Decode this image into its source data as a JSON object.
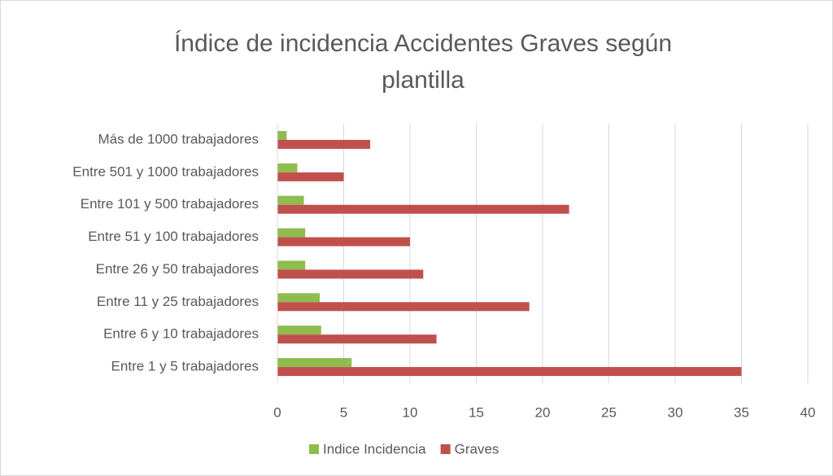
{
  "chart_data": {
    "type": "hbar",
    "title_lines": [
      "Índice de incidencia Accidentes Graves según",
      "plantilla"
    ],
    "categories": [
      "Entre 1 y 5 trabajadores",
      "Entre 6 y 10 trabajadores",
      "Entre 11 y 25 trabajadores",
      "Entre 26 y 50 trabajadores",
      "Entre 51 y 100 trabajadores",
      "Entre 101 y 500 trabajadores",
      "Entre 501 y 1000 trabajadores",
      "Más de 1000 trabajadores"
    ],
    "series": [
      {
        "name": "Indice Incidencia",
        "color": "#8fbc4f",
        "values": [
          5.6,
          3.3,
          3.2,
          2.1,
          2.1,
          2.0,
          1.5,
          0.7
        ]
      },
      {
        "name": "Graves",
        "color": "#c0504d",
        "values": [
          35,
          12,
          19,
          11,
          10,
          22,
          5,
          7
        ]
      }
    ],
    "xlim": [
      0,
      40
    ],
    "xticks": [
      0,
      5,
      10,
      15,
      20,
      25,
      30,
      35,
      40
    ],
    "grid": true,
    "legend": "bottom"
  }
}
